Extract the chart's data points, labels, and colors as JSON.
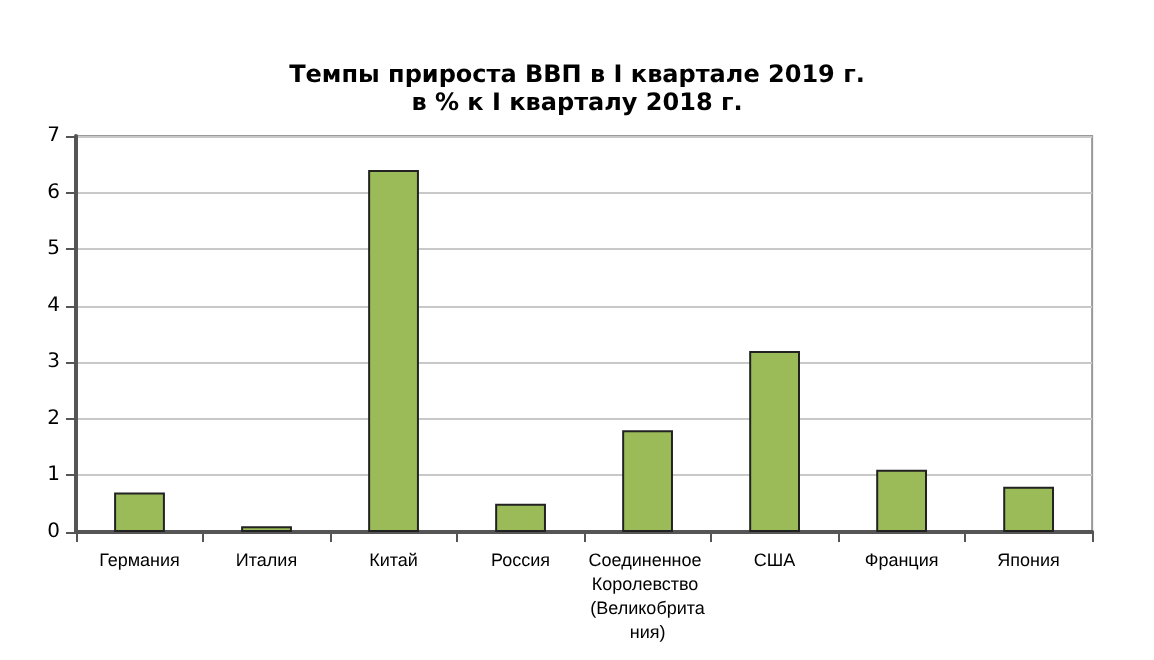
{
  "chart_data": {
    "type": "bar",
    "title": "Темпы прироста ВВП в I квартале 2019 г.",
    "subtitle": "в % к I кварталу 2018 г.",
    "categories": [
      "Германия",
      "Италия",
      "Китай",
      "Россия",
      "Соединенное Королевство (Великобритания)",
      "США",
      "Франция",
      "Япония"
    ],
    "values": [
      0.7,
      0.1,
      6.4,
      0.5,
      1.8,
      3.2,
      1.1,
      0.8
    ],
    "color": "#9bbb59",
    "ylim": [
      0,
      7
    ],
    "yticks": [
      0,
      1,
      2,
      3,
      4,
      5,
      6,
      7
    ],
    "grid": "y"
  }
}
